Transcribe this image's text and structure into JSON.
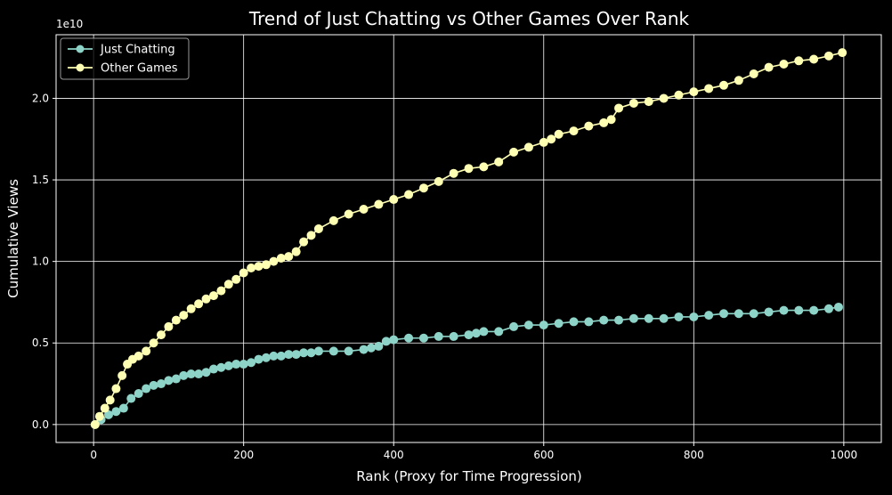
{
  "chart_data": {
    "type": "line",
    "title": "Trend of Just Chatting vs Other Games Over Rank",
    "xlabel": "Rank (Proxy for Time Progression)",
    "ylabel": "Cumulative Views",
    "y_offset_text": "1e10",
    "xlim": [
      -50,
      1050
    ],
    "ylim": [
      -0.11,
      2.39
    ],
    "y_unit_multiplier": 10000000000,
    "grid": true,
    "legend_position": "top-left",
    "x_ticks": [
      {
        "value": 0,
        "label": "0"
      },
      {
        "value": 200,
        "label": "200"
      },
      {
        "value": 400,
        "label": "400"
      },
      {
        "value": 600,
        "label": "600"
      },
      {
        "value": 800,
        "label": "800"
      },
      {
        "value": 1000,
        "label": "1000"
      }
    ],
    "y_ticks": [
      {
        "value": 0.0,
        "label": "0.0"
      },
      {
        "value": 0.5,
        "label": "0.5"
      },
      {
        "value": 1.0,
        "label": "1.0"
      },
      {
        "value": 1.5,
        "label": "1.5"
      },
      {
        "value": 2.0,
        "label": "2.0"
      }
    ],
    "series": [
      {
        "name": "Just Chatting",
        "color": "#8dd3c7",
        "x": [
          2,
          10,
          20,
          30,
          40,
          50,
          60,
          70,
          80,
          90,
          100,
          110,
          120,
          130,
          140,
          150,
          160,
          170,
          180,
          190,
          200,
          210,
          220,
          230,
          240,
          250,
          260,
          270,
          280,
          290,
          300,
          320,
          340,
          360,
          370,
          380,
          390,
          400,
          420,
          440,
          460,
          480,
          500,
          510,
          520,
          540,
          560,
          580,
          600,
          620,
          640,
          660,
          680,
          700,
          720,
          740,
          760,
          780,
          800,
          820,
          840,
          860,
          880,
          900,
          920,
          940,
          960,
          980,
          993
        ],
        "y": [
          0.0,
          0.03,
          0.06,
          0.08,
          0.1,
          0.16,
          0.19,
          0.22,
          0.24,
          0.25,
          0.27,
          0.28,
          0.3,
          0.31,
          0.31,
          0.32,
          0.34,
          0.35,
          0.36,
          0.37,
          0.37,
          0.38,
          0.4,
          0.41,
          0.42,
          0.42,
          0.43,
          0.43,
          0.44,
          0.44,
          0.45,
          0.45,
          0.45,
          0.46,
          0.47,
          0.48,
          0.51,
          0.52,
          0.53,
          0.53,
          0.54,
          0.54,
          0.55,
          0.56,
          0.57,
          0.57,
          0.6,
          0.61,
          0.61,
          0.62,
          0.63,
          0.63,
          0.64,
          0.64,
          0.65,
          0.65,
          0.65,
          0.66,
          0.66,
          0.67,
          0.68,
          0.68,
          0.68,
          0.69,
          0.7,
          0.7,
          0.7,
          0.71,
          0.72
        ]
      },
      {
        "name": "Other Games",
        "color": "#ffffb3",
        "x": [
          2,
          8,
          15,
          22,
          30,
          38,
          45,
          52,
          60,
          70,
          80,
          90,
          100,
          110,
          120,
          130,
          140,
          150,
          160,
          170,
          180,
          190,
          200,
          210,
          220,
          230,
          240,
          250,
          260,
          270,
          280,
          290,
          300,
          320,
          340,
          360,
          380,
          400,
          420,
          440,
          460,
          480,
          500,
          520,
          540,
          560,
          580,
          600,
          610,
          620,
          640,
          660,
          680,
          690,
          700,
          720,
          740,
          760,
          780,
          800,
          820,
          840,
          860,
          880,
          900,
          920,
          940,
          960,
          980,
          998
        ],
        "y": [
          0.0,
          0.05,
          0.1,
          0.15,
          0.22,
          0.3,
          0.37,
          0.4,
          0.42,
          0.45,
          0.5,
          0.55,
          0.6,
          0.64,
          0.67,
          0.71,
          0.74,
          0.77,
          0.79,
          0.82,
          0.86,
          0.89,
          0.93,
          0.96,
          0.97,
          0.98,
          1.0,
          1.02,
          1.03,
          1.06,
          1.12,
          1.16,
          1.2,
          1.25,
          1.29,
          1.32,
          1.35,
          1.38,
          1.41,
          1.45,
          1.49,
          1.54,
          1.57,
          1.58,
          1.61,
          1.67,
          1.7,
          1.73,
          1.75,
          1.78,
          1.8,
          1.83,
          1.85,
          1.87,
          1.94,
          1.97,
          1.98,
          2.0,
          2.02,
          2.04,
          2.06,
          2.08,
          2.11,
          2.15,
          2.19,
          2.21,
          2.23,
          2.24,
          2.26,
          2.28
        ]
      }
    ]
  }
}
